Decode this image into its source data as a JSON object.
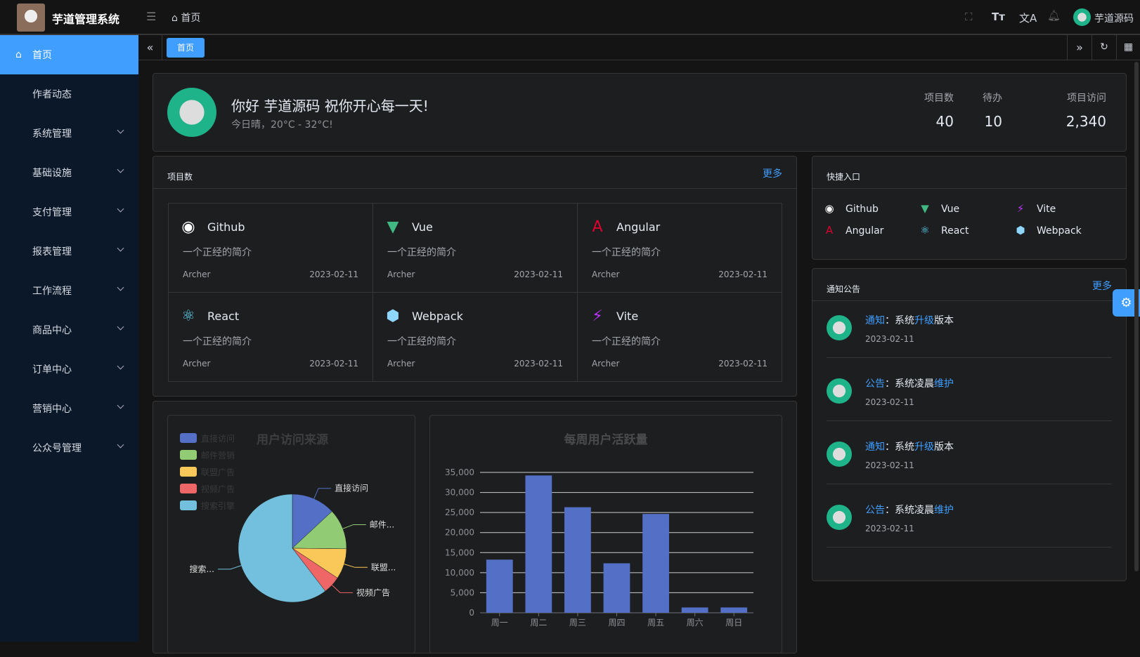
{
  "header": {
    "app_title": "芋道管理系统",
    "breadcrumb": "首页",
    "user_name": "芋道源码"
  },
  "sidebar": {
    "items": [
      {
        "label": "首页",
        "active": true
      },
      {
        "label": "作者动态"
      },
      {
        "label": "系统管理"
      },
      {
        "label": "基础设施"
      },
      {
        "label": "支付管理"
      },
      {
        "label": "报表管理"
      },
      {
        "label": "工作流程"
      },
      {
        "label": "商品中心"
      },
      {
        "label": "订单中心"
      },
      {
        "label": "营销中心"
      },
      {
        "label": "公众号管理"
      }
    ]
  },
  "tabs": {
    "active": "首页"
  },
  "welcome": {
    "greeting": "你好 芋道源码 祝你开心每一天!",
    "weather": "今日晴，20°C - 32°C!",
    "stats": [
      {
        "label": "项目数",
        "value": "40"
      },
      {
        "label": "待办",
        "value": "10"
      },
      {
        "label": "项目访问",
        "value": "2,340"
      }
    ]
  },
  "projects": {
    "title": "项目数",
    "more": "更多",
    "items": [
      {
        "name": "Github",
        "icon": "github-icon",
        "desc": "一个正经的简介",
        "author": "Archer",
        "date": "2023-02-11"
      },
      {
        "name": "Vue",
        "icon": "vue-icon",
        "desc": "一个正经的简介",
        "author": "Archer",
        "date": "2023-02-11"
      },
      {
        "name": "Angular",
        "icon": "angular-icon",
        "desc": "一个正经的简介",
        "author": "Archer",
        "date": "2023-02-11"
      },
      {
        "name": "React",
        "icon": "react-icon",
        "desc": "一个正经的简介",
        "author": "Archer",
        "date": "2023-02-11"
      },
      {
        "name": "Webpack",
        "icon": "webpack-icon",
        "desc": "一个正经的简介",
        "author": "Archer",
        "date": "2023-02-11"
      },
      {
        "name": "Vite",
        "icon": "vite-icon",
        "desc": "一个正经的简介",
        "author": "Archer",
        "date": "2023-02-11"
      }
    ]
  },
  "shortcuts": {
    "title": "快捷入口",
    "items": [
      {
        "name": "Github"
      },
      {
        "name": "Vue"
      },
      {
        "name": "Vite"
      },
      {
        "name": "Angular"
      },
      {
        "name": "React"
      },
      {
        "name": "Webpack"
      }
    ]
  },
  "notices": {
    "title": "通知公告",
    "more": "更多",
    "items": [
      {
        "type": "通知",
        "pre": "：系统",
        "hl": "升级",
        "post": "版本",
        "date": "2023-02-11"
      },
      {
        "type": "公告",
        "pre": "：系统凌晨",
        "hl": "维护",
        "post": "",
        "date": "2023-02-11"
      },
      {
        "type": "通知",
        "pre": "：系统",
        "hl": "升级",
        "post": "版本",
        "date": "2023-02-11"
      },
      {
        "type": "公告",
        "pre": "：系统凌晨",
        "hl": "维护",
        "post": "",
        "date": "2023-02-11"
      }
    ]
  },
  "colors": {
    "accent": "#409eff",
    "sidebar": "#0a1829"
  },
  "chart_data": [
    {
      "type": "pie",
      "title": "用户访问来源",
      "legend_position": "top-left",
      "categories": [
        "直接访问",
        "邮件营销",
        "联盟广告",
        "视频广告",
        "搜索引擎"
      ],
      "slice_labels": [
        "直接访问",
        "邮件...",
        "联盟...",
        "视频广告",
        "搜索..."
      ],
      "values": [
        335,
        310,
        234,
        135,
        1548
      ],
      "colors": [
        "#5470c6",
        "#91cc75",
        "#fac858",
        "#ee6666",
        "#73c0de"
      ]
    },
    {
      "type": "bar",
      "title": "每周用户活跃量",
      "categories": [
        "周一",
        "周二",
        "周三",
        "周四",
        "周五",
        "周六",
        "周日"
      ],
      "values": [
        13253,
        34235,
        26321,
        12340,
        24643,
        1322,
        1324
      ],
      "ylim": [
        0,
        35000
      ],
      "yticks": [
        "0",
        "5,000",
        "10,000",
        "15,000",
        "20,000",
        "25,000",
        "30,000",
        "35,000"
      ],
      "grid": true,
      "color": "#5470c6"
    }
  ]
}
